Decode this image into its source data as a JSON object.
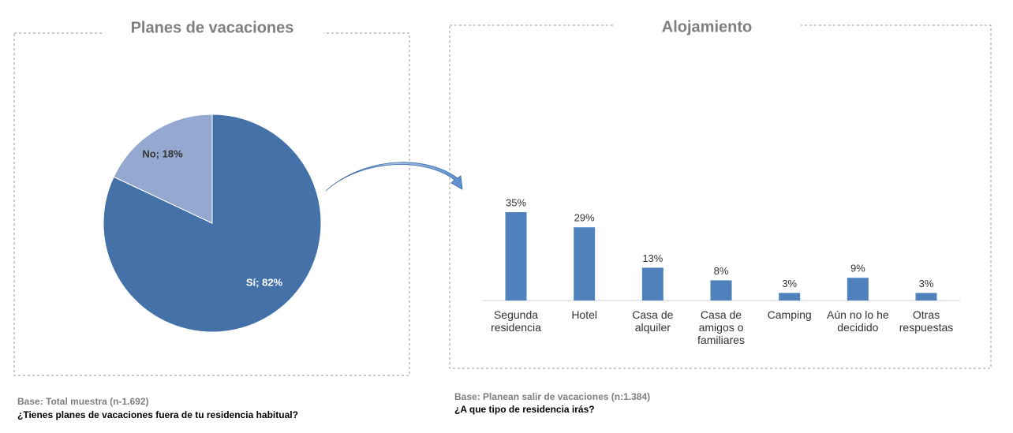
{
  "chart_data": [
    {
      "type": "pie",
      "title": "Planes de vacaciones",
      "values": [
        82,
        18
      ],
      "value_labels": [
        "Sí; 82%",
        "No; 18%"
      ],
      "colors": [
        "#4472a8",
        "#95a9d0"
      ],
      "base": "Base: Total muestra (n-1.692)",
      "question": "¿Tienes planes de vacaciones fuera de tu residencia habitual?"
    },
    {
      "type": "bar",
      "title": "Alojamiento",
      "categories": [
        "Segunda residencia",
        "Hotel",
        "Casa de alquiler",
        "Casa de amigos o familiares",
        "Camping",
        "Aún no lo he decidido",
        "Otras respuestas"
      ],
      "values": [
        35,
        29,
        13,
        8,
        3,
        9,
        3
      ],
      "value_labels": [
        "35%",
        "29%",
        "13%",
        "8%",
        "3%",
        "9%",
        "3%"
      ],
      "color": "#4f81bd",
      "base": "Base: Planean salir de vacaciones (n:1.384)",
      "question": "¿A que tipo de residencia irás?"
    }
  ]
}
